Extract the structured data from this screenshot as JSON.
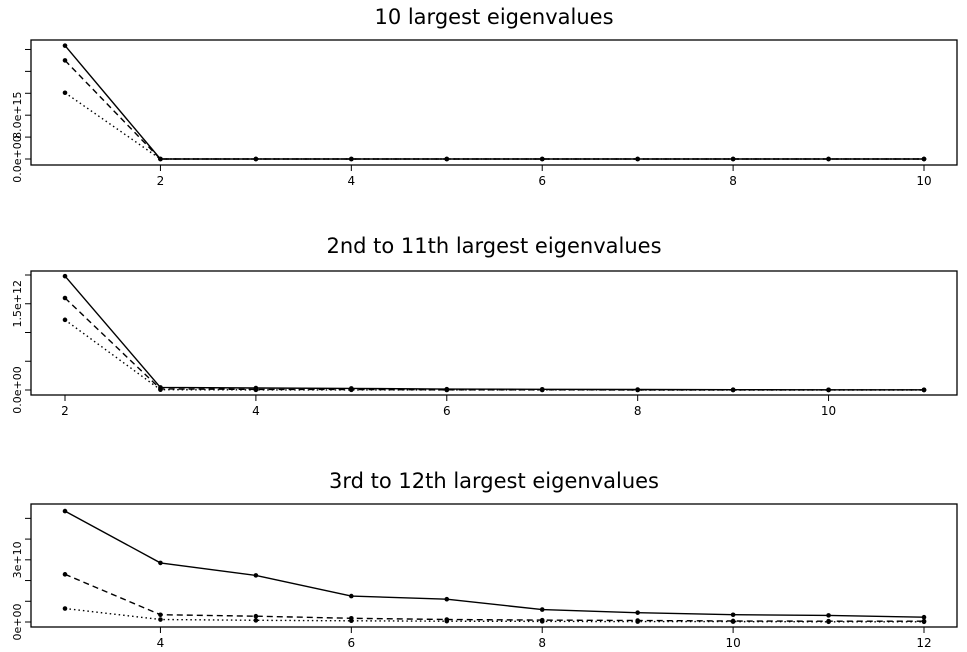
{
  "chart_data": [
    {
      "type": "line",
      "title": "10 largest eigenvalues",
      "xlabel": "",
      "ylabel": "",
      "x": [
        1,
        2,
        3,
        4,
        5,
        6,
        7,
        8,
        9,
        10
      ],
      "xlim": [
        1,
        10
      ],
      "ylim": [
        0,
        2.1e+16
      ],
      "x_ticks": [
        2,
        4,
        6,
        8,
        10
      ],
      "x_tick_labels": [
        "2",
        "4",
        "6",
        "8",
        "10"
      ],
      "y_ticks": [
        0,
        4000000000000000.0,
        8000000000000000.0,
        1.2e+16,
        1.6e+16,
        2e+16
      ],
      "y_tick_labels": [
        {
          "value": 0,
          "label": "0.0e+00"
        },
        {
          "value": 8000000000000000.0,
          "label": "8.0e+15"
        }
      ],
      "series": [
        {
          "line_style": "solid",
          "values": [
            2.07e+16,
            0,
            0,
            0,
            0,
            0,
            0,
            0,
            0,
            0
          ]
        },
        {
          "line_style": "dashed",
          "values": [
            1.8e+16,
            0,
            0,
            0,
            0,
            0,
            0,
            0,
            0,
            0
          ]
        },
        {
          "line_style": "dotted",
          "values": [
            1.21e+16,
            0,
            0,
            0,
            0,
            0,
            0,
            0,
            0,
            0
          ]
        }
      ]
    },
    {
      "type": "line",
      "title": "2nd to 11th largest eigenvalues",
      "xlabel": "",
      "ylabel": "",
      "x": [
        2,
        3,
        4,
        5,
        6,
        7,
        8,
        9,
        10,
        11
      ],
      "xlim": [
        2,
        11
      ],
      "ylim": [
        0,
        2000000000000.0
      ],
      "x_ticks": [
        2,
        4,
        6,
        8,
        10
      ],
      "x_tick_labels": [
        "2",
        "4",
        "6",
        "8",
        "10"
      ],
      "y_ticks": [
        0,
        500000000000.0,
        1000000000000.0,
        1500000000000.0,
        2000000000000.0
      ],
      "y_tick_labels": [
        {
          "value": 0,
          "label": "0.0e+00"
        },
        {
          "value": 1500000000000.0,
          "label": "1.5e+12"
        }
      ],
      "series": [
        {
          "line_style": "solid",
          "values": [
            1980000000000.0,
            45000000000.0,
            35000000000.0,
            28000000000.0,
            15000000000.0,
            13000000000.0,
            8000000000.0,
            5000000000.0,
            4000000000.0,
            4000000000.0
          ]
        },
        {
          "line_style": "dashed",
          "values": [
            1600000000000.0,
            20000000000.0,
            10000000000.0,
            8000000000.0,
            4000000000.0,
            3000000000.0,
            2000000000.0,
            1000000000.0,
            1000000000.0,
            1000000000.0
          ]
        },
        {
          "line_style": "dotted",
          "values": [
            1220000000000.0,
            5000000000.0,
            2000000000.0,
            2000000000.0,
            1000000000.0,
            1000000000.0,
            500000000.0,
            500000000.0,
            300000000.0,
            300000000.0
          ]
        }
      ]
    },
    {
      "type": "line",
      "title": "3rd to 12th largest eigenvalues",
      "xlabel": "",
      "ylabel": "",
      "x": [
        3,
        4,
        5,
        6,
        7,
        8,
        9,
        10,
        11,
        12
      ],
      "xlim": [
        3,
        12
      ],
      "ylim": [
        0,
        55000000000.0
      ],
      "x_ticks": [
        4,
        6,
        8,
        10,
        12
      ],
      "x_tick_labels": [
        "4",
        "6",
        "8",
        "10",
        "12"
      ],
      "y_ticks": [
        0,
        10000000000.0,
        20000000000.0,
        30000000000.0,
        40000000000.0,
        50000000000.0
      ],
      "y_tick_labels": [
        {
          "value": 0,
          "label": "0e+00"
        },
        {
          "value": 30000000000.0,
          "label": "3e+10"
        }
      ],
      "series": [
        {
          "line_style": "solid",
          "values": [
            53500000000.0,
            28500000000.0,
            22500000000.0,
            12500000000.0,
            11000000000.0,
            6000000000.0,
            4500000000.0,
            3500000000.0,
            3200000000.0,
            2300000000.0
          ]
        },
        {
          "line_style": "dashed",
          "values": [
            23000000000.0,
            3500000000.0,
            2800000000.0,
            1800000000.0,
            1200000000.0,
            900000000.0,
            700000000.0,
            500000000.0,
            400000000.0,
            400000000.0
          ]
        },
        {
          "line_style": "dotted",
          "values": [
            6500000000.0,
            1200000000.0,
            800000000.0,
            600000000.0,
            400000000.0,
            300000000.0,
            200000000.0,
            200000000.0,
            100000000.0,
            100000000.0
          ]
        }
      ]
    }
  ]
}
